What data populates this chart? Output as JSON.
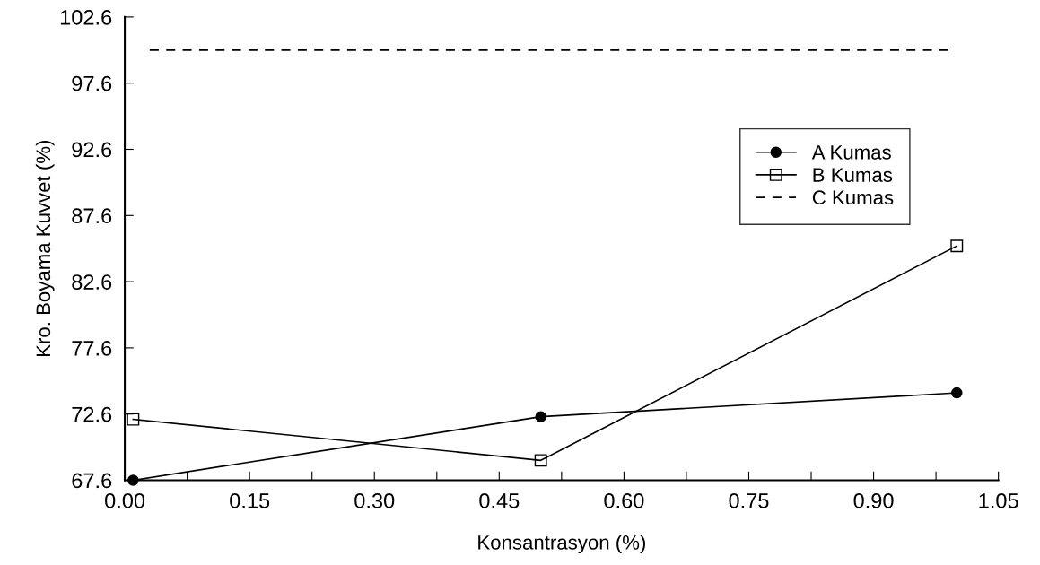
{
  "chart_data": {
    "type": "line",
    "xlabel": "Konsantrasyon (%)",
    "ylabel": "Kro. Boyama Kuvvet (%)",
    "xlim": [
      0,
      1.05
    ],
    "ylim": [
      67.6,
      102.6
    ],
    "xticks": [
      {
        "value": 0,
        "label": "0.00"
      },
      {
        "value": 0.075,
        "label": null
      },
      {
        "value": 0.15,
        "label": "0.15"
      },
      {
        "value": 0.225,
        "label": null
      },
      {
        "value": 0.3,
        "label": "0.30"
      },
      {
        "value": 0.375,
        "label": null
      },
      {
        "value": 0.45,
        "label": "0.45"
      },
      {
        "value": 0.525,
        "label": null
      },
      {
        "value": 0.6,
        "label": "0.60"
      },
      {
        "value": 0.675,
        "label": null
      },
      {
        "value": 0.75,
        "label": "0.75"
      },
      {
        "value": 0.825,
        "label": null
      },
      {
        "value": 0.9,
        "label": "0.90"
      },
      {
        "value": 0.975,
        "label": null
      },
      {
        "value": 1.05,
        "label": "1.05"
      }
    ],
    "yticks": [
      67.6,
      72.6,
      77.6,
      82.6,
      87.6,
      92.6,
      97.6,
      102.6
    ],
    "grid": false,
    "legend": "upper right",
    "series": [
      {
        "name": "A Kumas",
        "color": "#000000",
        "x": [
          0.01,
          0.5,
          1.0
        ],
        "values": [
          67.6,
          72.4,
          74.2
        ],
        "marker": "circle",
        "line_style": "solid"
      },
      {
        "name": "B Kumas",
        "color": "#000000",
        "x": [
          0.01,
          0.5,
          1.0
        ],
        "values": [
          72.2,
          69.1,
          85.3
        ],
        "marker": "square",
        "line_style": "solid"
      },
      {
        "name": "C Kumas",
        "color": "#000000",
        "x": [
          0.03,
          0.99
        ],
        "values": [
          100.1,
          100.1
        ],
        "marker": "none",
        "line_style": "dashed"
      }
    ]
  }
}
